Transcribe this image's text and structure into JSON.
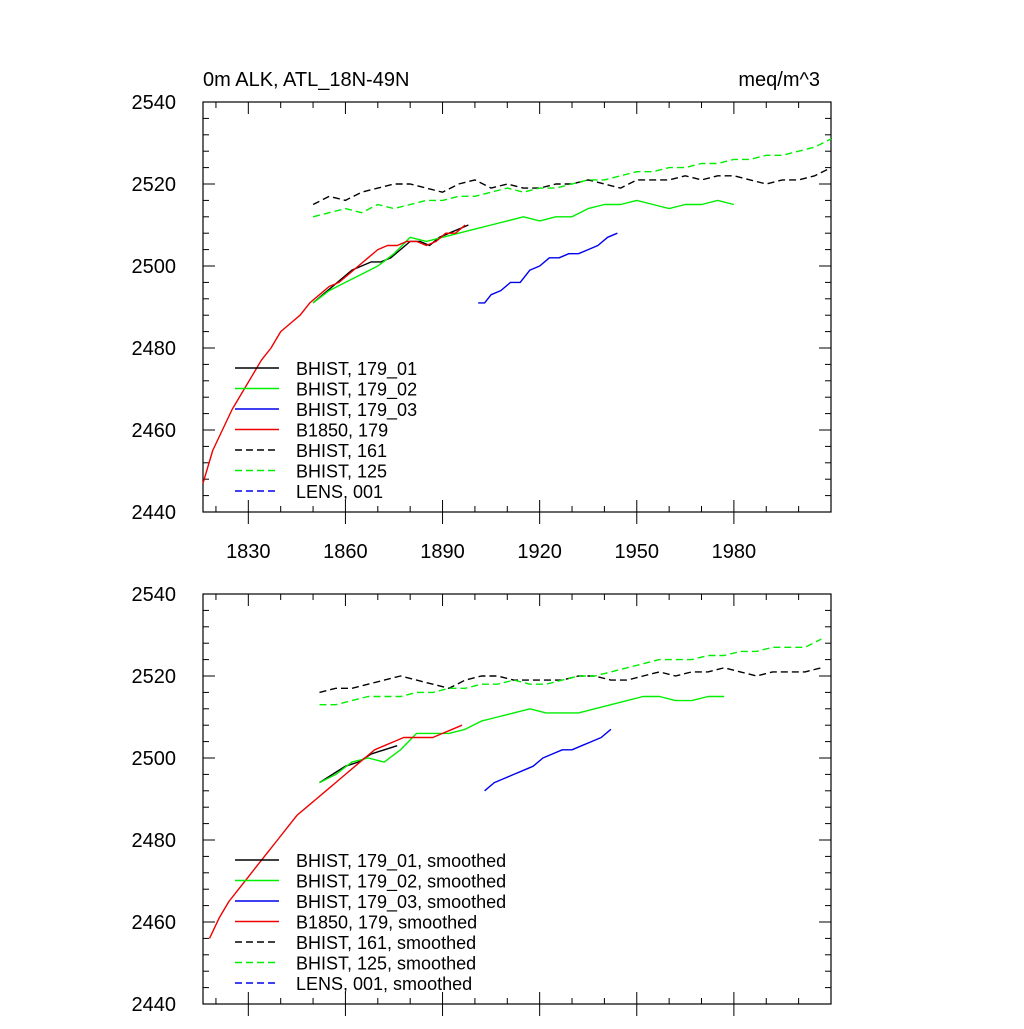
{
  "chart_data": [
    {
      "type": "line",
      "title_left": "0m ALK, ATL_18N-49N",
      "title_right": "meq/m^3",
      "xlabel": "",
      "ylabel": "",
      "xlim": [
        1816,
        2010
      ],
      "ylim": [
        2440,
        2540
      ],
      "xticks": [
        1830,
        1860,
        1890,
        1920,
        1950,
        1980
      ],
      "xtick_labels": [
        "1830",
        "1860",
        "1890",
        "1920",
        "1950",
        "1980"
      ],
      "yticks": [
        2440,
        2460,
        2480,
        2500,
        2520,
        2540
      ],
      "ytick_labels": [
        "2440",
        "2460",
        "2480",
        "2500",
        "2520",
        "2540"
      ],
      "grid": false,
      "legend_position": "bottom-left",
      "series": [
        {
          "name": "BHIST, 179_01",
          "color": "#000000",
          "dash": "solid",
          "x": [
            1850,
            1853,
            1856,
            1859,
            1862,
            1865,
            1868,
            1871,
            1874,
            1877,
            1880,
            1883,
            1886,
            1889,
            1892,
            1895,
            1898
          ],
          "y": [
            2491,
            2493,
            2495,
            2497,
            2499,
            2500,
            2501,
            2501,
            2502,
            2504,
            2506,
            2506,
            2505,
            2507,
            2508,
            2509,
            2510
          ]
        },
        {
          "name": "BHIST, 179_02",
          "color": "#00ee00",
          "dash": "solid",
          "x": [
            1850,
            1855,
            1860,
            1865,
            1870,
            1875,
            1880,
            1885,
            1890,
            1895,
            1900,
            1905,
            1910,
            1915,
            1920,
            1925,
            1930,
            1935,
            1940,
            1945,
            1950,
            1955,
            1960,
            1965,
            1970,
            1975,
            1980
          ],
          "y": [
            2491,
            2494,
            2496,
            2498,
            2500,
            2503,
            2507,
            2506,
            2507,
            2508,
            2509,
            2510,
            2511,
            2512,
            2511,
            2512,
            2512,
            2514,
            2515,
            2515,
            2516,
            2515,
            2514,
            2515,
            2515,
            2516,
            2515
          ]
        },
        {
          "name": "BHIST, 179_03",
          "color": "#0000ee",
          "dash": "solid",
          "x": [
            1901,
            1903,
            1905,
            1908,
            1911,
            1914,
            1917,
            1920,
            1923,
            1926,
            1929,
            1932,
            1935,
            1938,
            1941,
            1944
          ],
          "y": [
            2491,
            2491,
            2493,
            2494,
            2496,
            2496,
            2499,
            2500,
            2502,
            2502,
            2503,
            2503,
            2504,
            2505,
            2507,
            2508
          ]
        },
        {
          "name": "B1850, 179",
          "color": "#ee0000",
          "dash": "solid",
          "x": [
            1816,
            1819,
            1822,
            1825,
            1828,
            1831,
            1834,
            1837,
            1840,
            1843,
            1846,
            1849,
            1852,
            1855,
            1858,
            1861,
            1864,
            1867,
            1870,
            1873,
            1876,
            1879,
            1882,
            1885,
            1888,
            1891,
            1894,
            1897
          ],
          "y": [
            2447,
            2455,
            2460,
            2465,
            2469,
            2473,
            2477,
            2480,
            2484,
            2486,
            2488,
            2491,
            2493,
            2495,
            2496,
            2498,
            2500,
            2502,
            2504,
            2505,
            2505,
            2506,
            2506,
            2505,
            2506,
            2508,
            2508,
            2510
          ]
        },
        {
          "name": "BHIST, 161",
          "color": "#000000",
          "dash": "dashed",
          "x": [
            1850,
            1855,
            1860,
            1865,
            1870,
            1875,
            1880,
            1885,
            1890,
            1895,
            1900,
            1905,
            1910,
            1915,
            1920,
            1925,
            1930,
            1935,
            1940,
            1945,
            1950,
            1955,
            1960,
            1965,
            1970,
            1975,
            1980,
            1985,
            1990,
            1995,
            2000,
            2005,
            2010
          ],
          "y": [
            2515,
            2517,
            2516,
            2518,
            2519,
            2520,
            2520,
            2519,
            2518,
            2520,
            2521,
            2519,
            2520,
            2519,
            2519,
            2520,
            2520,
            2521,
            2520,
            2519,
            2521,
            2521,
            2521,
            2522,
            2521,
            2522,
            2522,
            2521,
            2520,
            2521,
            2521,
            2522,
            2524
          ]
        },
        {
          "name": "BHIST, 125",
          "color": "#00ee00",
          "dash": "dashed",
          "x": [
            1850,
            1855,
            1860,
            1865,
            1870,
            1875,
            1880,
            1885,
            1890,
            1895,
            1900,
            1905,
            1910,
            1915,
            1920,
            1925,
            1930,
            1935,
            1940,
            1945,
            1950,
            1955,
            1960,
            1965,
            1970,
            1975,
            1980,
            1985,
            1990,
            1995,
            2000,
            2005,
            2010
          ],
          "y": [
            2512,
            2513,
            2514,
            2513,
            2515,
            2514,
            2515,
            2516,
            2516,
            2517,
            2517,
            2518,
            2519,
            2518,
            2519,
            2519,
            2520,
            2521,
            2521,
            2522,
            2523,
            2523,
            2524,
            2524,
            2525,
            2525,
            2526,
            2526,
            2527,
            2527,
            2528,
            2529,
            2531
          ]
        },
        {
          "name": "LENS, 001",
          "color": "#0000ee",
          "dash": "dashed",
          "x": [],
          "y": []
        }
      ]
    },
    {
      "type": "line",
      "title_left": "",
      "title_right": "",
      "xlabel": "",
      "ylabel": "",
      "xlim": [
        1816,
        2010
      ],
      "ylim": [
        2440,
        2540
      ],
      "xticks": [
        1830,
        1860,
        1890,
        1920,
        1950,
        1980
      ],
      "xtick_labels": [],
      "yticks": [
        2440,
        2460,
        2480,
        2500,
        2520,
        2540
      ],
      "ytick_labels": [
        "2440",
        "2460",
        "2480",
        "2500",
        "2520",
        "2540"
      ],
      "grid": false,
      "legend_position": "bottom-left",
      "series": [
        {
          "name": "BHIST, 179_01, smoothed",
          "color": "#000000",
          "dash": "solid",
          "x": [
            1852,
            1856,
            1860,
            1864,
            1868,
            1872,
            1876
          ],
          "y": [
            2494,
            2496,
            2498,
            2499,
            2501,
            2502,
            2503
          ]
        },
        {
          "name": "BHIST, 179_02, smoothed",
          "color": "#00ee00",
          "dash": "solid",
          "x": [
            1852,
            1857,
            1862,
            1867,
            1872,
            1877,
            1882,
            1887,
            1892,
            1897,
            1902,
            1907,
            1912,
            1917,
            1922,
            1927,
            1932,
            1937,
            1942,
            1947,
            1952,
            1957,
            1962,
            1967,
            1972,
            1977
          ],
          "y": [
            2494,
            2496,
            2499,
            2500,
            2499,
            2502,
            2506,
            2506,
            2506,
            2507,
            2509,
            2510,
            2511,
            2512,
            2511,
            2511,
            2511,
            2512,
            2513,
            2514,
            2515,
            2515,
            2514,
            2514,
            2515,
            2515
          ]
        },
        {
          "name": "BHIST, 179_03, smoothed",
          "color": "#0000ee",
          "dash": "solid",
          "x": [
            1903,
            1906,
            1909,
            1912,
            1915,
            1918,
            1921,
            1924,
            1927,
            1930,
            1933,
            1936,
            1939,
            1942
          ],
          "y": [
            2492,
            2494,
            2495,
            2496,
            2497,
            2498,
            2500,
            2501,
            2502,
            2502,
            2503,
            2504,
            2505,
            2507
          ]
        },
        {
          "name": "B1850, 179, smoothed",
          "color": "#ee0000",
          "dash": "solid",
          "x": [
            1818,
            1821,
            1824,
            1827,
            1830,
            1833,
            1836,
            1839,
            1842,
            1845,
            1848,
            1851,
            1854,
            1857,
            1860,
            1863,
            1866,
            1869,
            1872,
            1875,
            1878,
            1881,
            1884,
            1887,
            1890,
            1893,
            1896
          ],
          "y": [
            2456,
            2461,
            2465,
            2468,
            2471,
            2474,
            2477,
            2480,
            2483,
            2486,
            2488,
            2490,
            2492,
            2494,
            2496,
            2498,
            2500,
            2502,
            2503,
            2504,
            2505,
            2505,
            2505,
            2505,
            2506,
            2507,
            2508
          ]
        },
        {
          "name": "BHIST, 161, smoothed",
          "color": "#000000",
          "dash": "dashed",
          "x": [
            1852,
            1857,
            1862,
            1867,
            1872,
            1877,
            1882,
            1887,
            1892,
            1897,
            1902,
            1907,
            1912,
            1917,
            1922,
            1927,
            1932,
            1937,
            1942,
            1947,
            1952,
            1957,
            1962,
            1967,
            1972,
            1977,
            1982,
            1987,
            1992,
            1997,
            2002,
            2007
          ],
          "y": [
            2516,
            2517,
            2517,
            2518,
            2519,
            2520,
            2519,
            2518,
            2517,
            2519,
            2520,
            2520,
            2519,
            2519,
            2519,
            2519,
            2520,
            2520,
            2519,
            2519,
            2520,
            2521,
            2520,
            2521,
            2521,
            2522,
            2521,
            2520,
            2521,
            2521,
            2521,
            2522
          ]
        },
        {
          "name": "BHIST, 125, smoothed",
          "color": "#00ee00",
          "dash": "dashed",
          "x": [
            1852,
            1857,
            1862,
            1867,
            1872,
            1877,
            1882,
            1887,
            1892,
            1897,
            1902,
            1907,
            1912,
            1917,
            1922,
            1927,
            1932,
            1937,
            1942,
            1947,
            1952,
            1957,
            1962,
            1967,
            1972,
            1977,
            1982,
            1987,
            1992,
            1997,
            2002,
            2007
          ],
          "y": [
            2513,
            2513,
            2514,
            2515,
            2515,
            2515,
            2516,
            2516,
            2517,
            2517,
            2518,
            2518,
            2519,
            2518,
            2518,
            2519,
            2520,
            2520,
            2521,
            2522,
            2523,
            2524,
            2524,
            2524,
            2525,
            2525,
            2526,
            2526,
            2527,
            2527,
            2527,
            2529
          ]
        },
        {
          "name": "LENS, 001, smoothed",
          "color": "#0000ee",
          "dash": "dashed",
          "x": [],
          "y": []
        }
      ]
    }
  ]
}
